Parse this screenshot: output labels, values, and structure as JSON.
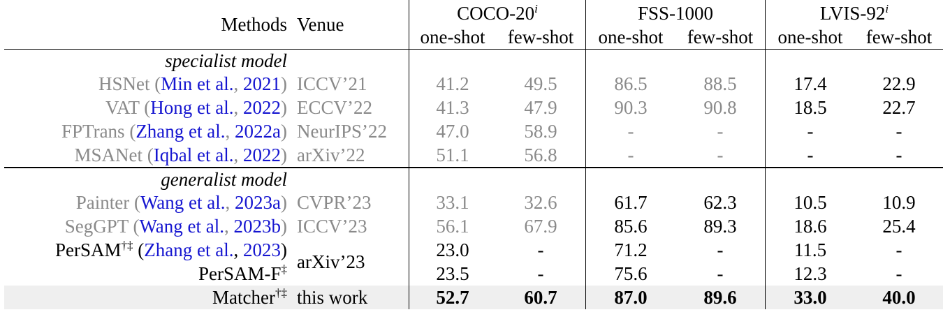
{
  "header": {
    "methods_label": "Methods",
    "venue_label": "Venue",
    "datasets": [
      {
        "name": "COCO-20",
        "sup": "i"
      },
      {
        "name": "FSS-1000",
        "sup": ""
      },
      {
        "name": "LVIS-92",
        "sup": "i"
      }
    ],
    "sub_one": "one-shot",
    "sub_few": "few-shot"
  },
  "sections": {
    "specialist": "specialist model",
    "generalist": "generalist model"
  },
  "rows": {
    "hsnet": {
      "name": "HSNet",
      "open": " (",
      "author": "Min et al.",
      "sep": ", ",
      "year": "2021",
      "close": ")",
      "venue": "ICCV’21",
      "values": [
        "41.2",
        "49.5",
        "86.5",
        "88.5",
        "17.4",
        "22.9"
      ]
    },
    "vat": {
      "name": "VAT",
      "open": " (",
      "author": "Hong et al.",
      "sep": ", ",
      "year": "2022",
      "close": ")",
      "venue": "ECCV’22",
      "values": [
        "41.3",
        "47.9",
        "90.3",
        "90.8",
        "18.5",
        "22.7"
      ]
    },
    "fptrans": {
      "name": "FPTrans",
      "open": " (",
      "author": "Zhang et al.",
      "sep": ", ",
      "year": "2022a",
      "close": ")",
      "venue": "NeurIPS’22",
      "values": [
        "47.0",
        "58.9",
        "-",
        "-",
        "-",
        "-"
      ]
    },
    "msanet": {
      "name": "MSANet",
      "open": " (",
      "author": "Iqbal et al.",
      "sep": ", ",
      "year": "2022",
      "close": ")",
      "venue": "arXiv’22",
      "values": [
        "51.1",
        "56.8",
        "-",
        "-",
        "-",
        "-"
      ]
    },
    "painter": {
      "name": "Painter",
      "open": " (",
      "author": "Wang et al.",
      "sep": ", ",
      "year": "2023a",
      "close": ")",
      "venue": "CVPR’23",
      "values": [
        "33.1",
        "32.6",
        "61.7",
        "62.3",
        "10.5",
        "10.9"
      ]
    },
    "seggpt": {
      "name": "SegGPT",
      "open": " (",
      "author": "Wang et al.",
      "sep": ", ",
      "year": "2023b",
      "close": ")",
      "venue": "ICCV’23",
      "values": [
        "56.1",
        "67.9",
        "85.6",
        "89.3",
        "18.6",
        "25.4"
      ]
    },
    "persam": {
      "name": "PerSAM",
      "sup": "†‡",
      "open": " (",
      "author": "Zhang et al.",
      "sep": ", ",
      "year": "2023",
      "close": ")",
      "venue": "arXiv’23",
      "values": [
        "23.0",
        "-",
        "71.2",
        "-",
        "11.5",
        "-"
      ]
    },
    "persamf": {
      "name": "PerSAM-F",
      "sup": "‡",
      "values": [
        "23.5",
        "-",
        "75.6",
        "-",
        "12.3",
        "-"
      ]
    },
    "matcher": {
      "name": "Matcher",
      "sup": "†‡",
      "venue": "this work",
      "values": [
        "52.7",
        "60.7",
        "87.0",
        "89.6",
        "33.0",
        "40.0"
      ]
    }
  },
  "colors": {
    "grey_text": "#8a8a8a",
    "citation_blue": "#1515d0",
    "highlight_row": "#efefef"
  }
}
